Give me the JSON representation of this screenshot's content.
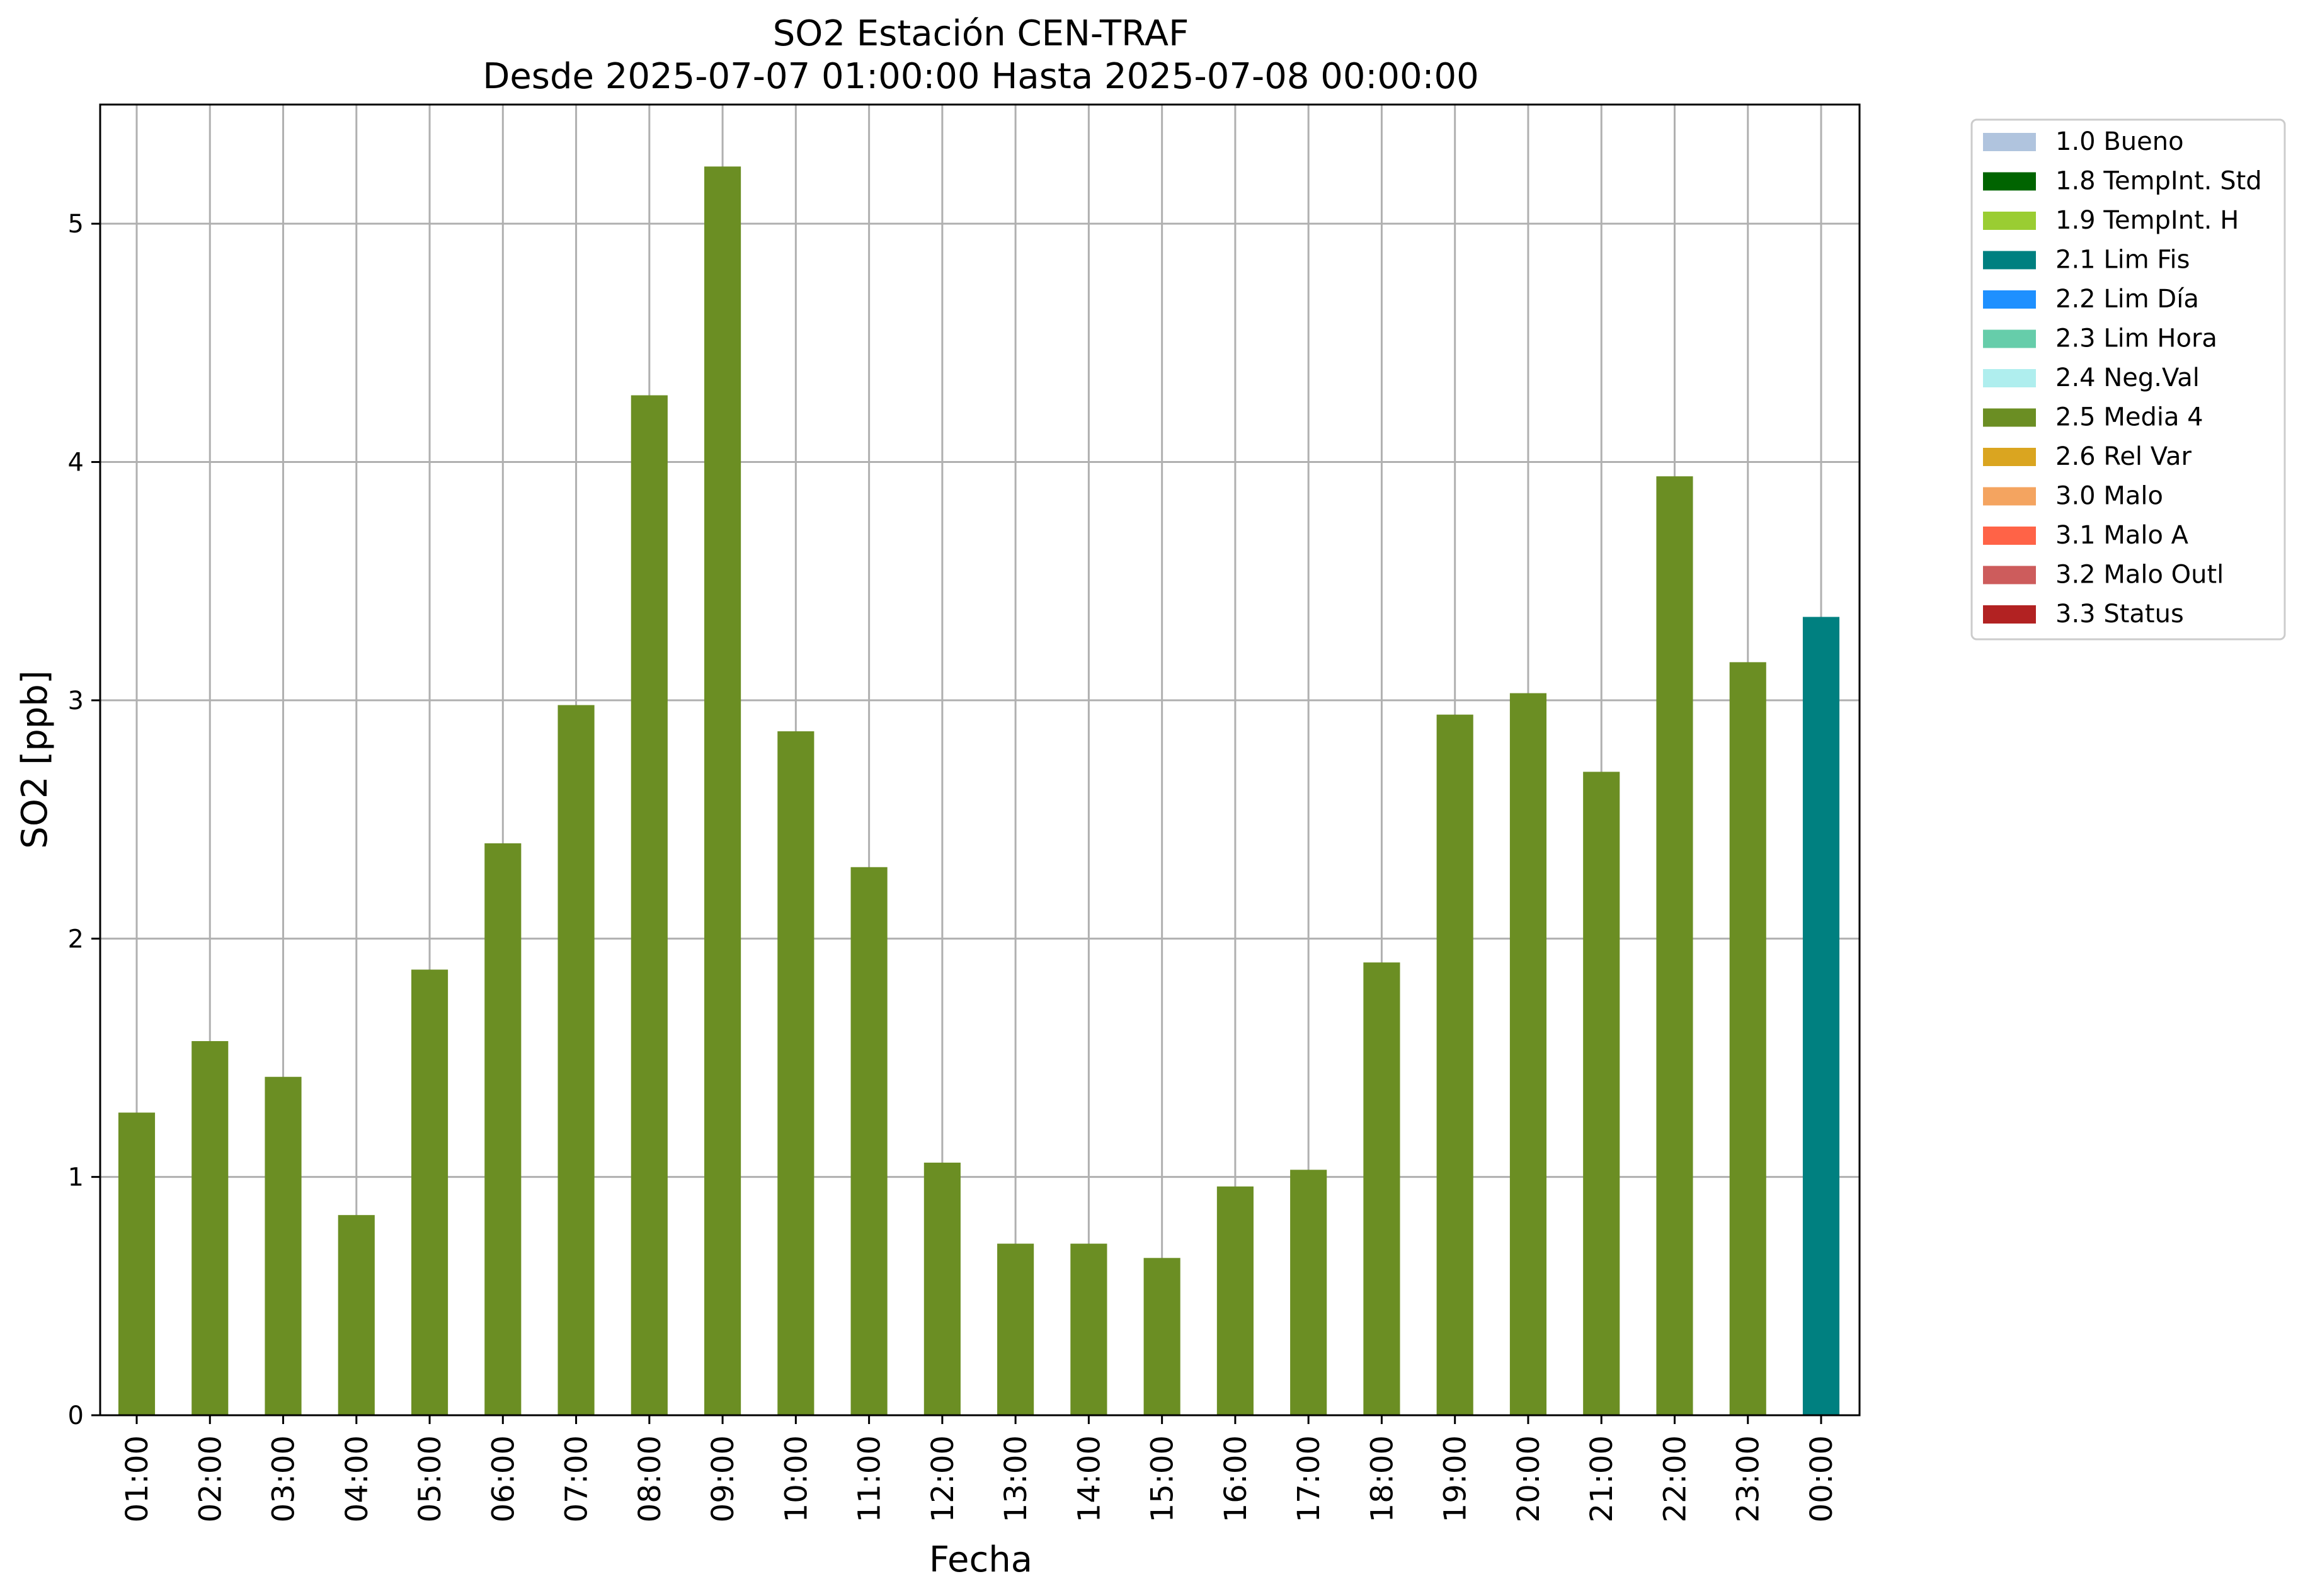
{
  "chart_data": {
    "type": "bar",
    "title": "SO2 Estación CEN-TRAF",
    "subtitle": "Desde 2025-07-07 01:00:00 Hasta 2025-07-08 00:00:00",
    "xlabel": "Fecha",
    "ylabel": "SO2 [ppb]",
    "ylim": [
      0,
      5.5
    ],
    "yticks": [
      0,
      1,
      2,
      3,
      4,
      5
    ],
    "grid": true,
    "legend_position": "outside-right",
    "categories": [
      "01:00",
      "02:00",
      "03:00",
      "04:00",
      "05:00",
      "06:00",
      "07:00",
      "08:00",
      "09:00",
      "10:00",
      "11:00",
      "12:00",
      "13:00",
      "14:00",
      "15:00",
      "16:00",
      "17:00",
      "18:00",
      "19:00",
      "20:00",
      "21:00",
      "22:00",
      "23:00",
      "00:00"
    ],
    "values": [
      1.27,
      1.57,
      1.42,
      0.84,
      1.87,
      2.4,
      2.98,
      4.28,
      5.24,
      2.87,
      2.3,
      1.06,
      0.72,
      0.72,
      0.66,
      0.96,
      1.03,
      1.9,
      2.94,
      3.03,
      2.7,
      3.94,
      3.16,
      3.35
    ],
    "bar_flags": [
      "2.5 Media 4",
      "2.5 Media 4",
      "2.5 Media 4",
      "2.5 Media 4",
      "2.5 Media 4",
      "2.5 Media 4",
      "2.5 Media 4",
      "2.5 Media 4",
      "2.5 Media 4",
      "2.5 Media 4",
      "2.5 Media 4",
      "2.5 Media 4",
      "2.5 Media 4",
      "2.5 Media 4",
      "2.5 Media 4",
      "2.5 Media 4",
      "2.5 Media 4",
      "2.5 Media 4",
      "2.5 Media 4",
      "2.5 Media 4",
      "2.5 Media 4",
      "2.5 Media 4",
      "2.5 Media 4",
      "2.1 Lim Fis"
    ],
    "legend": [
      {
        "label": "1.0 Bueno",
        "color": "#b0c4de"
      },
      {
        "label": "1.8 TempInt. Std",
        "color": "#006400"
      },
      {
        "label": "1.9 TempInt. H",
        "color": "#9acd32"
      },
      {
        "label": "2.1 Lim Fis",
        "color": "#008080"
      },
      {
        "label": "2.2 Lim Día",
        "color": "#1e90ff"
      },
      {
        "label": "2.3 Lim Hora",
        "color": "#66cdaa"
      },
      {
        "label": "2.4 Neg.Val",
        "color": "#afeeee"
      },
      {
        "label": "2.5 Media 4",
        "color": "#6b8e23"
      },
      {
        "label": "2.6 Rel Var",
        "color": "#daa520"
      },
      {
        "label": "3.0 Malo",
        "color": "#f4a460"
      },
      {
        "label": "3.1 Malo A",
        "color": "#ff6347"
      },
      {
        "label": "3.2 Malo Outl",
        "color": "#cd5c5c"
      },
      {
        "label": "3.3 Status",
        "color": "#b22222"
      }
    ]
  }
}
